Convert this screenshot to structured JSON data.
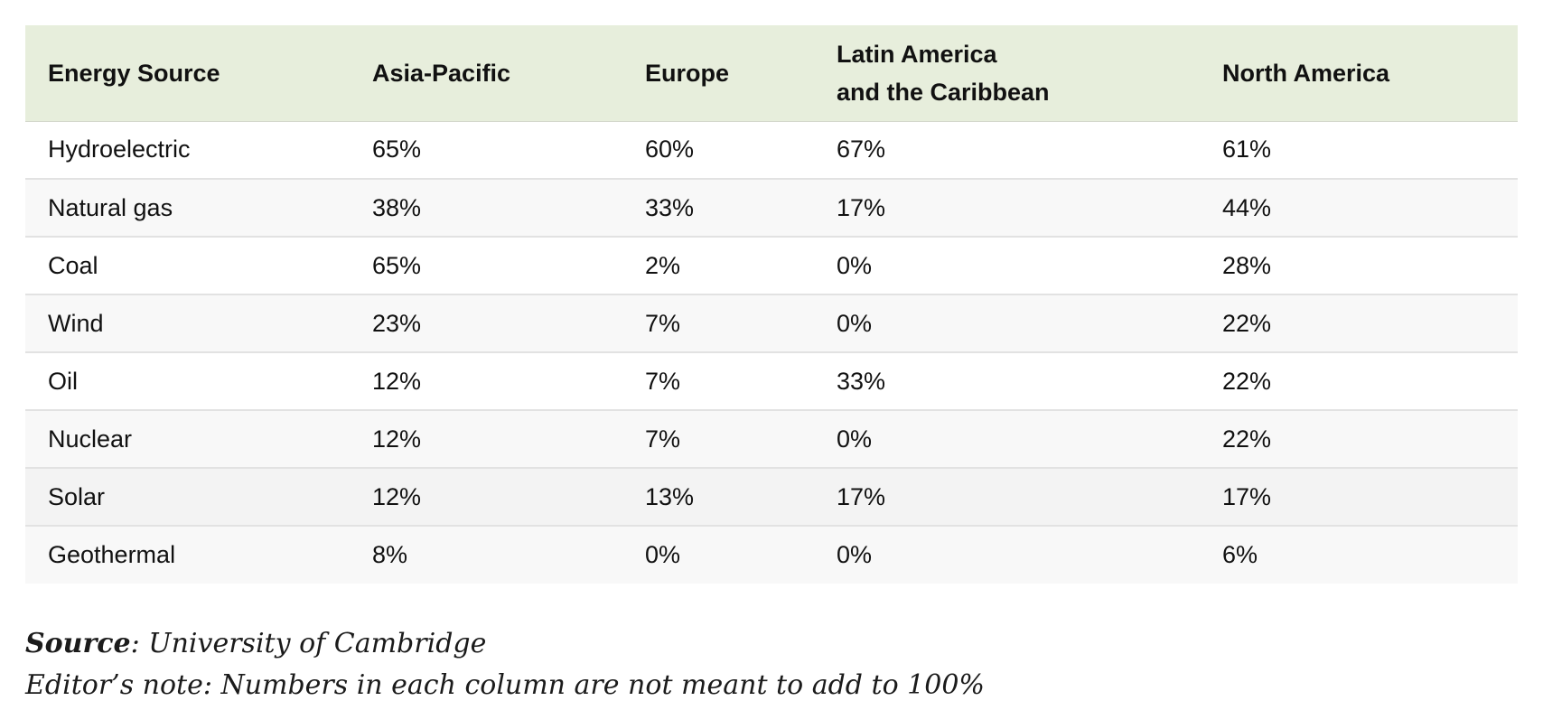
{
  "table": {
    "headers": [
      "Energy Source",
      "Asia-Pacific",
      "Europe",
      "Latin America\nand the Caribbean",
      "North America"
    ],
    "rows": [
      [
        "Hydroelectric",
        "65%",
        "60%",
        "67%",
        "61%"
      ],
      [
        "Natural gas",
        "38%",
        "33%",
        "17%",
        "44%"
      ],
      [
        "Coal",
        "65%",
        "2%",
        "0%",
        "28%"
      ],
      [
        "Wind",
        "23%",
        "7%",
        "0%",
        "22%"
      ],
      [
        "Oil",
        "12%",
        "7%",
        "33%",
        "22%"
      ],
      [
        "Nuclear",
        "12%",
        "7%",
        "0%",
        "22%"
      ],
      [
        "Solar",
        "12%",
        "13%",
        "17%",
        "17%"
      ],
      [
        "Geothermal",
        "8%",
        "0%",
        "0%",
        "6%"
      ]
    ]
  },
  "notes": {
    "source_label": "Source",
    "source_text": ": University of Cambridge",
    "editor_note": "Editor’s note: Numbers in each column are not meant to add to 100%"
  },
  "colors": {
    "header_background": "#e7eedc",
    "row_stripe": "#f8f8f8",
    "row_divider": "#e2e2e2"
  }
}
